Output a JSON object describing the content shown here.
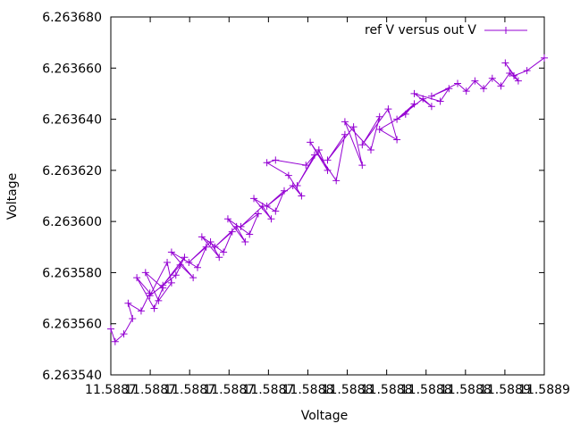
{
  "chart_data": {
    "type": "line",
    "title": "",
    "xlabel": "Voltage",
    "ylabel": "Voltage",
    "xlim": [
      0,
      10
    ],
    "ylim": [
      6.26354,
      6.26368
    ],
    "x_tick_labels": [
      "11.5887",
      "11.5887",
      "11.5887",
      "11.5887",
      "11.5887",
      "11.5888",
      "11.5888",
      "11.5888",
      "11.5888",
      "11.5888",
      "11.5889",
      "11.5889"
    ],
    "y_tick_labels": [
      "6.263540",
      "6.263560",
      "6.263580",
      "6.263600",
      "6.263620",
      "6.263640",
      "6.263660",
      "6.263680"
    ],
    "y_ticks": [
      6.26354,
      6.26356,
      6.26358,
      6.2636,
      6.26362,
      6.26364,
      6.26366,
      6.26368
    ],
    "grid": false,
    "legend_position": "top-right",
    "series": [
      {
        "name": "ref V versus out V",
        "color": "#9400d3",
        "marker": "plus",
        "x": [
          0.0,
          0.1,
          0.3,
          0.5,
          0.4,
          0.7,
          0.9,
          0.6,
          1.0,
          1.2,
          0.8,
          1.1,
          1.4,
          1.3,
          0.9,
          1.5,
          1.7,
          1.2,
          1.6,
          1.9,
          1.4,
          2.0,
          2.2,
          1.8,
          2.3,
          2.5,
          2.1,
          2.6,
          2.8,
          2.4,
          2.9,
          3.1,
          2.7,
          3.2,
          3.4,
          3.0,
          3.5,
          3.7,
          3.3,
          3.8,
          4.0,
          3.6,
          4.2,
          4.4,
          4.1,
          3.6,
          3.8,
          4.5,
          4.7,
          4.3,
          4.8,
          5.0,
          4.6,
          5.2,
          5.4,
          5.0,
          5.6,
          5.8,
          5.4,
          6.0,
          6.2,
          5.8,
          6.4,
          6.6,
          6.2,
          6.8,
          7.0,
          6.6,
          7.2,
          7.4,
          7.0,
          7.6,
          7.8,
          7.4,
          8.0,
          8.2,
          8.4,
          8.6,
          8.8,
          9.0,
          9.2,
          9.4,
          9.1,
          9.3,
          9.6,
          10.0
        ],
        "y": [
          6.263558,
          6.263553,
          6.263556,
          6.263562,
          6.263568,
          6.263565,
          6.263572,
          6.263578,
          6.263566,
          6.263574,
          6.26358,
          6.263569,
          6.263576,
          6.263584,
          6.263571,
          6.263579,
          6.263586,
          6.263575,
          6.263583,
          6.263578,
          6.263588,
          6.263582,
          6.26359,
          6.263584,
          6.263592,
          6.263586,
          6.263594,
          6.263588,
          6.263596,
          6.26359,
          6.263598,
          6.263592,
          6.263601,
          6.263595,
          6.263603,
          6.263598,
          6.263606,
          6.263601,
          6.263609,
          6.263604,
          6.263612,
          6.263606,
          6.263614,
          6.26361,
          6.263618,
          6.263623,
          6.263624,
          6.263622,
          6.263626,
          6.263614,
          6.263628,
          6.26362,
          6.263631,
          6.263616,
          6.263634,
          6.263624,
          6.263637,
          6.263622,
          6.263639,
          6.263628,
          6.263641,
          6.26363,
          6.263644,
          6.263632,
          6.263636,
          6.263642,
          6.263646,
          6.26364,
          6.263648,
          6.263645,
          6.26365,
          6.263647,
          6.263652,
          6.263649,
          6.263654,
          6.263651,
          6.263655,
          6.263652,
          6.263656,
          6.263653,
          6.263658,
          6.263655,
          6.263662,
          6.263657,
          6.263659,
          6.263664
        ]
      }
    ]
  }
}
